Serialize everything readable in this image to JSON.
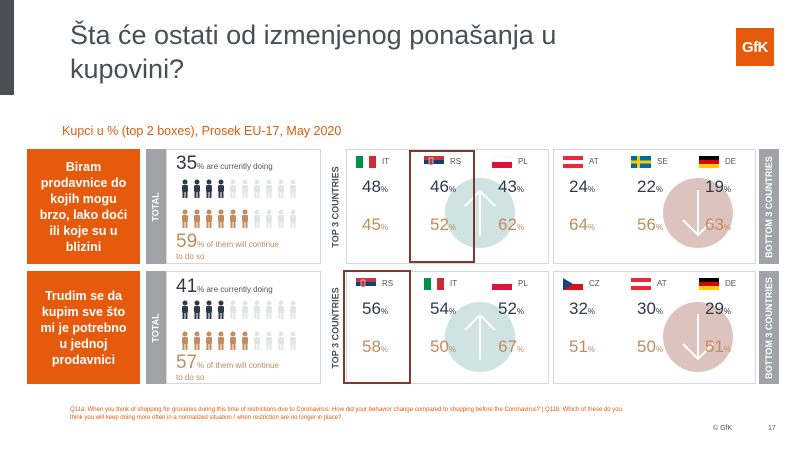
{
  "title": "Šta će ostati od izmenjenog ponašanja u kupovini?",
  "logo_text": "GfK",
  "subtitle": "Kupci u % (top 2 boxes), Prosek EU-17, May 2020",
  "labels": {
    "total": "TOTAL",
    "top3": "TOP 3 COUNTRIES",
    "bottom3": "BOTTOM 3 COUNTRIES",
    "pct": "%",
    "currently_doing": "% are currently doing",
    "will_continue_1": "% of them will continue",
    "will_continue_2": "to do so"
  },
  "colors": {
    "accent": "#e55a0c",
    "dark": "#2e3a4b",
    "tan": "#c48b5d",
    "teal": "#cfe3e2",
    "rose": "#ddc3bd"
  },
  "chart_data": [
    {
      "type": "table",
      "statement": "Biram prodavnice do kojih mogu brzo, lako doći ili koje su u blizini",
      "total": {
        "currently_doing": 35,
        "will_continue": 59
      },
      "top3": [
        {
          "code": "IT",
          "currently": "48",
          "continue": "45"
        },
        {
          "code": "RS",
          "currently": "46",
          "continue": "52"
        },
        {
          "code": "PL",
          "currently": "43",
          "continue": "62"
        }
      ],
      "bottom3": [
        {
          "code": "AT",
          "currently": "24",
          "continue": "64"
        },
        {
          "code": "SE",
          "currently": "22",
          "continue": "56"
        },
        {
          "code": "DE",
          "currently": "19",
          "continue": "63"
        }
      ]
    },
    {
      "type": "table",
      "statement": "Trudim se da kupim sve što mi je potrebno u jednoj prodavnici",
      "total": {
        "currently_doing": 41,
        "will_continue": 57
      },
      "top3": [
        {
          "code": "RS",
          "currently": "56",
          "continue": "58"
        },
        {
          "code": "IT",
          "currently": "54",
          "continue": "50"
        },
        {
          "code": "PL",
          "currently": "52",
          "continue": "67"
        }
      ],
      "bottom3": [
        {
          "code": "CZ",
          "currently": "32",
          "continue": "51"
        },
        {
          "code": "AT",
          "currently": "30",
          "continue": "50"
        },
        {
          "code": "DE",
          "currently": "29",
          "continue": "51"
        }
      ]
    }
  ],
  "footnote": "Q11a: When you think of shopping for groceries during this time of restrictions due to Coronavirus: How did your behavior change compared to shopping before the Coronavirus? | Q11b: Which of these do you think you will keep doing more often in a normalized situation / when restriction are no longer in place?",
  "copyright": "© GfK",
  "page_number": "17"
}
